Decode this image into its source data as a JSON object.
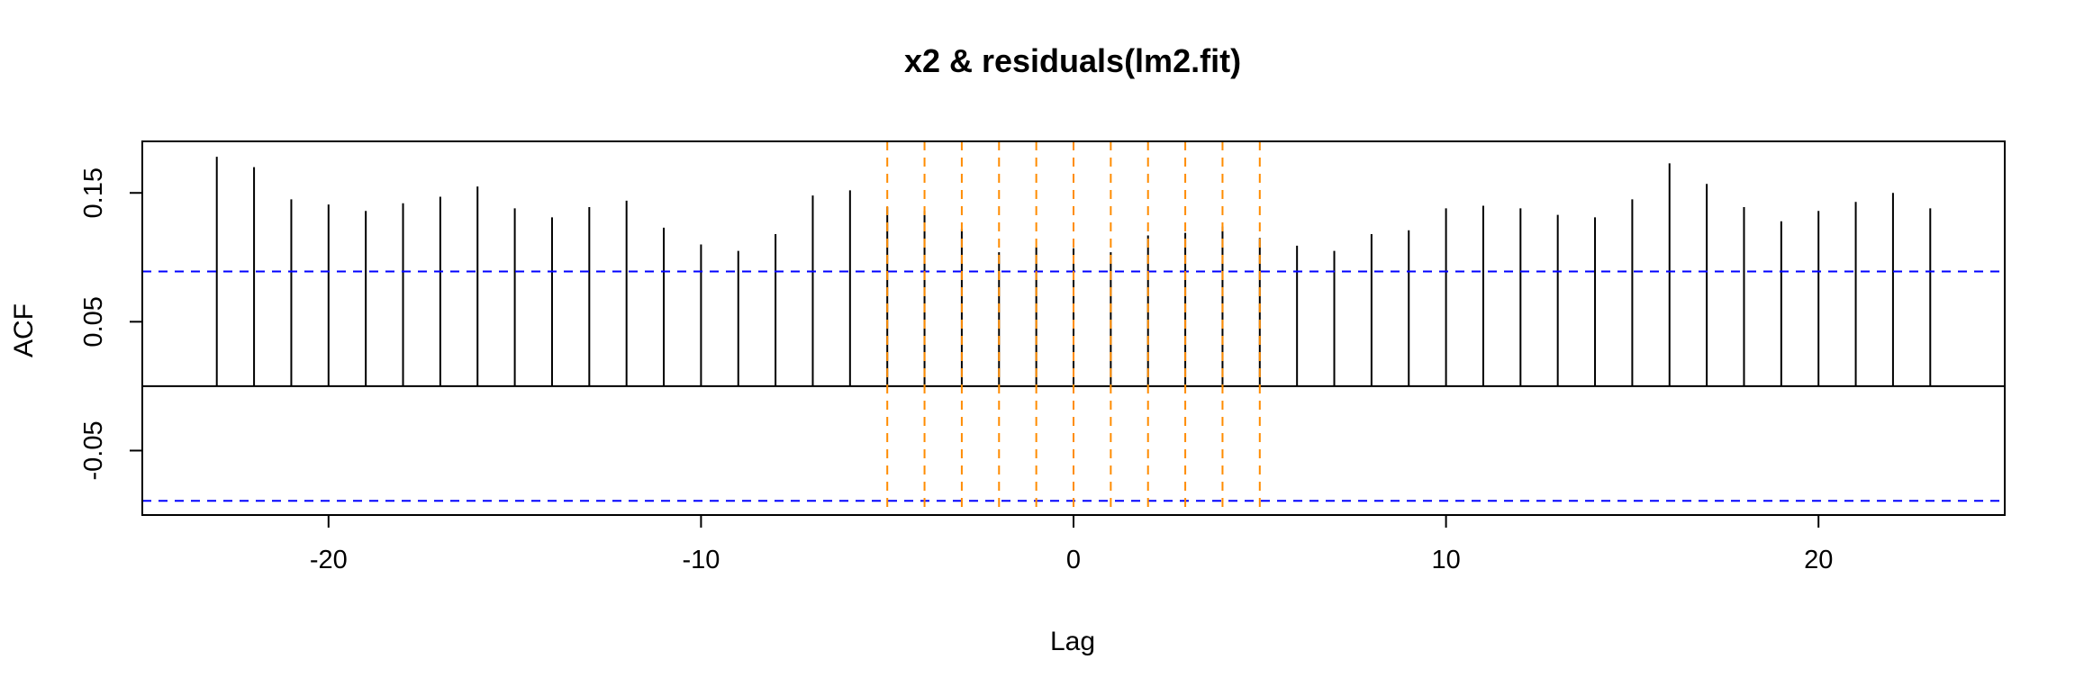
{
  "chart_data": {
    "type": "bar",
    "title": "x2 & residuals(lm2.fit)",
    "xlabel": "Lag",
    "ylabel": "ACF",
    "xlim": [
      -25,
      25
    ],
    "ylim": [
      -0.1,
      0.19
    ],
    "xticks": [
      -20,
      -10,
      0,
      10,
      20
    ],
    "yticks": [
      -0.05,
      0.05,
      0.15
    ],
    "ytick_labels": [
      "-0.05",
      "0.05",
      "0.15"
    ],
    "lags": [
      -23,
      -22,
      -21,
      -20,
      -19,
      -18,
      -17,
      -16,
      -15,
      -14,
      -13,
      -12,
      -11,
      -10,
      -9,
      -8,
      -7,
      -6,
      -5,
      -4,
      -3,
      -2,
      -1,
      0,
      1,
      2,
      3,
      4,
      5,
      6,
      7,
      8,
      9,
      10,
      11,
      12,
      13,
      14,
      15,
      16,
      17,
      18,
      19,
      20,
      21,
      22,
      23
    ],
    "acf": [
      0.178,
      0.17,
      0.145,
      0.141,
      0.136,
      0.142,
      0.147,
      0.155,
      0.138,
      0.131,
      0.139,
      0.144,
      0.123,
      0.11,
      0.105,
      0.118,
      0.148,
      0.152,
      0.139,
      0.136,
      0.122,
      0.104,
      0.108,
      0.107,
      0.104,
      0.117,
      0.119,
      0.124,
      0.115,
      0.109,
      0.105,
      0.118,
      0.121,
      0.138,
      0.14,
      0.138,
      0.133,
      0.131,
      0.145,
      0.173,
      0.157,
      0.139,
      0.128,
      0.136,
      0.143,
      0.15,
      0.138
    ],
    "confidence_bounds": [
      0.089,
      -0.089
    ],
    "confidence_color": "#0000ff",
    "highlight_lags": [
      -5,
      -4,
      -3,
      -2,
      -1,
      0,
      1,
      2,
      3,
      4,
      5
    ],
    "highlight_color": "#ff8c00",
    "bar_color": "#000000"
  }
}
